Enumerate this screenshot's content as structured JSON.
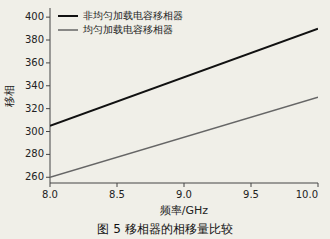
{
  "chart_data": {
    "type": "line",
    "title": "图 5 移相器的相移量比较",
    "xlabel": "频率/GHz",
    "ylabel": "移相",
    "x": [
      8.0,
      10.0
    ],
    "series": [
      {
        "name": "非均匀加载电容移相器",
        "color": "#111111",
        "values": [
          305,
          390
        ]
      },
      {
        "name": "均匀加载电容移相器",
        "color": "#666666",
        "values": [
          260,
          330
        ]
      }
    ],
    "xlim": [
      8.0,
      10.0
    ],
    "ylim": [
      255,
      408
    ],
    "xticks": [
      {
        "value": 8.0,
        "label": "8.0"
      },
      8.5,
      {
        "value": 9.0,
        "label": "9.0"
      },
      9.5,
      {
        "value": 10.0,
        "label": "10.0"
      }
    ],
    "yticks": [
      260,
      280,
      300,
      320,
      340,
      360,
      380,
      400
    ],
    "legend": "upper left",
    "grid": false
  }
}
